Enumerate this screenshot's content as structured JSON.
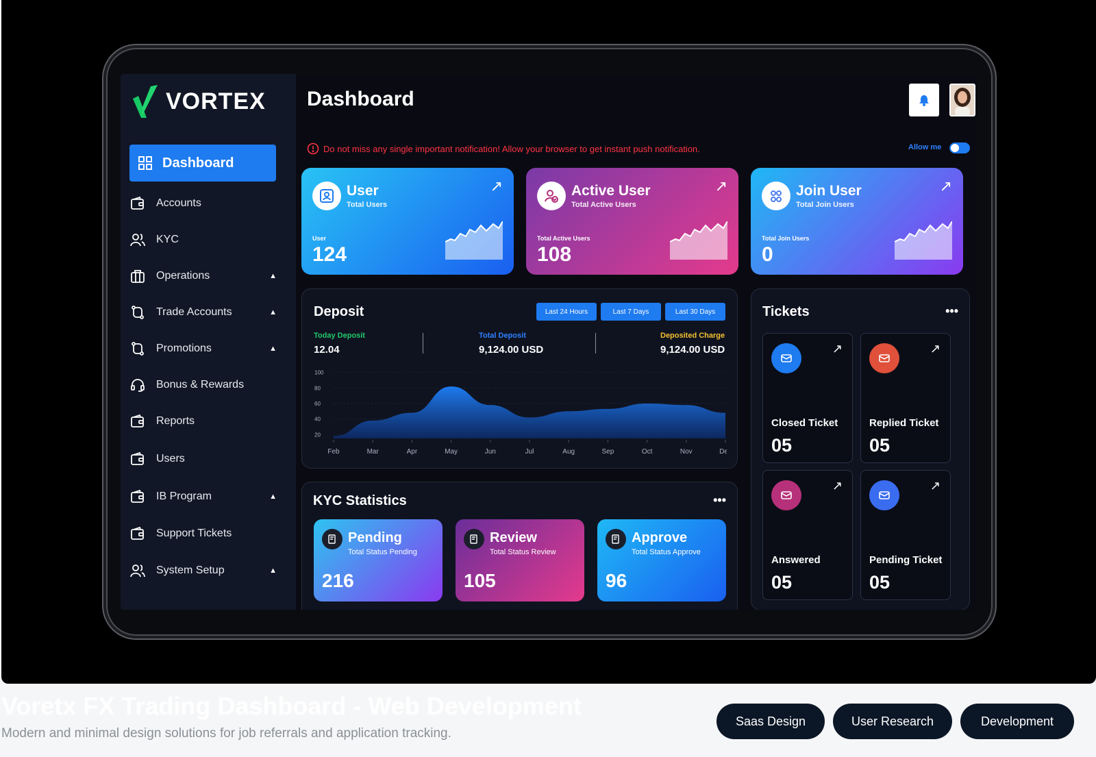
{
  "app": {
    "brand": "VORTEX",
    "page_title": "Dashboard"
  },
  "sidebar": {
    "active": "Dashboard",
    "items": [
      {
        "label": "Accounts",
        "icon": "wallet-icon",
        "caret": false
      },
      {
        "label": "KYC",
        "icon": "users-icon",
        "caret": false
      },
      {
        "label": "Operations",
        "icon": "briefcase-icon",
        "caret": true
      },
      {
        "label": "Trade Accounts",
        "icon": "swap-icon",
        "caret": true
      },
      {
        "label": "Promotions",
        "icon": "swap-icon",
        "caret": true
      },
      {
        "label": "Bonus & Rewards",
        "icon": "headset-icon",
        "caret": false
      },
      {
        "label": "Reports",
        "icon": "wallet-icon",
        "caret": false
      },
      {
        "label": "Users",
        "icon": "wallet-icon",
        "caret": false
      },
      {
        "label": "IB Program",
        "icon": "wallet-icon",
        "caret": true
      },
      {
        "label": "Support Tickets",
        "icon": "wallet-icon",
        "caret": false
      },
      {
        "label": "System Setup",
        "icon": "users-icon",
        "caret": true
      }
    ],
    "caret_glyph": "▲"
  },
  "notice": {
    "text": "Do not miss any single important notification! Allow your browser to get instant push notification.",
    "allow_label": "Allow me"
  },
  "stats": [
    {
      "title": "User",
      "subtitle": "Total Users",
      "label": "User",
      "value": "124"
    },
    {
      "title": "Active User",
      "subtitle": "Total Active Users",
      "label": "Total Active Users",
      "value": "108"
    },
    {
      "title": "Join User",
      "subtitle": "Total Join Users",
      "label": "Total Join Users",
      "value": "0"
    }
  ],
  "deposit": {
    "title": "Deposit",
    "ranges": [
      "Last 24 Hours",
      "Last 7 Days",
      "Last 30 Days"
    ],
    "today_label": "Today Deposit",
    "today_value": "12.04",
    "total_label": "Total Deposit",
    "total_value": "9,124.00 USD",
    "charge_label": "Deposited Charge",
    "charge_value": "9,124.00 USD"
  },
  "chart_data": {
    "type": "area",
    "x": [
      "Feb",
      "Mar",
      "Apr",
      "May",
      "Jun",
      "Jul",
      "Aug",
      "Sep",
      "Oct",
      "Nov",
      "Dec"
    ],
    "values": [
      18,
      38,
      48,
      82,
      58,
      42,
      50,
      53,
      60,
      58,
      48
    ],
    "yticks": [
      "100",
      "80",
      "60",
      "40",
      "20"
    ],
    "ylim": [
      15,
      105
    ]
  },
  "tickets": {
    "title": "Tickets",
    "items": [
      {
        "name": "Closed Ticket",
        "value": "05",
        "color": "#1e7bf0"
      },
      {
        "name": "Replied Ticket",
        "value": "05",
        "color": "#e0503a"
      },
      {
        "name": "Answered",
        "value": "05",
        "color": "#b7307a"
      },
      {
        "name": "Pending Ticket",
        "value": "05",
        "color": "#3a6cf0"
      }
    ]
  },
  "kyc": {
    "title": "KYC Statistics",
    "items": [
      {
        "title": "Pending",
        "subtitle": "Total Status Pending",
        "value": "216"
      },
      {
        "title": "Review",
        "subtitle": "Total Status Review",
        "value": "105"
      },
      {
        "title": "Approve",
        "subtitle": "Total Status Approve",
        "value": "96"
      }
    ]
  },
  "caption": {
    "title": "Voretx FX Trading Dashboard - Web Development",
    "subtitle": "Modern and minimal design solutions for job referrals and application tracking."
  },
  "tags": [
    "Saas Design",
    "User Research",
    "Development"
  ]
}
